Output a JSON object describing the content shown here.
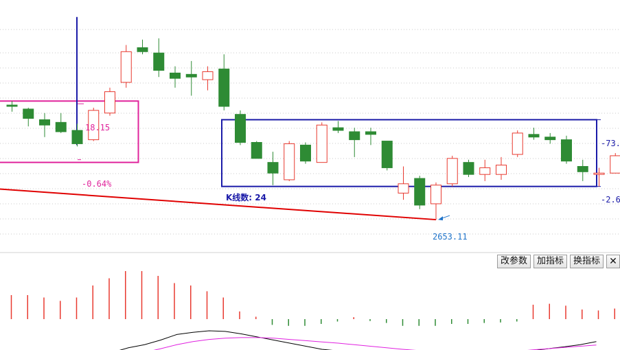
{
  "chart_data": {
    "type": "candlestick",
    "note_units": "price axis values are index points",
    "price_range": [
      2630,
      2810
    ],
    "candles": [
      {
        "open": 2739,
        "high": 2742,
        "low": 2734,
        "close": 2738
      },
      {
        "open": 2736,
        "high": 2737,
        "low": 2723,
        "close": 2729
      },
      {
        "open": 2728,
        "high": 2733,
        "low": 2715,
        "close": 2724
      },
      {
        "open": 2726,
        "high": 2733,
        "low": 2718,
        "close": 2719
      },
      {
        "open": 2720,
        "high": 2725,
        "low": 2708,
        "close": 2710
      },
      {
        "open": 2713,
        "high": 2737,
        "low": 2712,
        "close": 2735
      },
      {
        "open": 2733,
        "high": 2752,
        "low": 2731,
        "close": 2749
      },
      {
        "open": 2756,
        "high": 2784,
        "low": 2752,
        "close": 2779
      },
      {
        "open": 2782,
        "high": 2788,
        "low": 2777,
        "close": 2779
      },
      {
        "open": 2778,
        "high": 2789,
        "low": 2760,
        "close": 2765
      },
      {
        "open": 2763,
        "high": 2768,
        "low": 2752,
        "close": 2759
      },
      {
        "open": 2762,
        "high": 2772,
        "low": 2746,
        "close": 2760
      },
      {
        "open": 2758,
        "high": 2768,
        "low": 2750,
        "close": 2764
      },
      {
        "open": 2766,
        "high": 2777,
        "low": 2735,
        "close": 2738
      },
      {
        "open": 2732,
        "high": 2735,
        "low": 2709,
        "close": 2711
      },
      {
        "open": 2711,
        "high": 2712,
        "low": 2700,
        "close": 2699
      },
      {
        "open": 2696,
        "high": 2704,
        "low": 2679,
        "close": 2688
      },
      {
        "open": 2683,
        "high": 2712,
        "low": 2682,
        "close": 2710
      },
      {
        "open": 2709,
        "high": 2711,
        "low": 2695,
        "close": 2697
      },
      {
        "open": 2696,
        "high": 2726,
        "low": 2696,
        "close": 2724
      },
      {
        "open": 2722,
        "high": 2727,
        "low": 2718,
        "close": 2720
      },
      {
        "open": 2719,
        "high": 2722,
        "low": 2700,
        "close": 2713
      },
      {
        "open": 2719,
        "high": 2722,
        "low": 2709,
        "close": 2717
      },
      {
        "open": 2712,
        "high": 2712,
        "low": 2690,
        "close": 2692
      },
      {
        "open": 2673,
        "high": 2693,
        "low": 2668,
        "close": 2680
      },
      {
        "open": 2684,
        "high": 2686,
        "low": 2661,
        "close": 2664
      },
      {
        "open": 2665,
        "high": 2681,
        "low": 2653.11,
        "close": 2679
      },
      {
        "open": 2680,
        "high": 2701,
        "low": 2678,
        "close": 2699
      },
      {
        "open": 2696,
        "high": 2698,
        "low": 2685,
        "close": 2687
      },
      {
        "open": 2687,
        "high": 2698,
        "low": 2682,
        "close": 2692
      },
      {
        "open": 2687,
        "high": 2700,
        "low": 2683,
        "close": 2694
      },
      {
        "open": 2702,
        "high": 2720,
        "low": 2700,
        "close": 2718
      },
      {
        "open": 2717,
        "high": 2722,
        "low": 2713,
        "close": 2715
      },
      {
        "open": 2715,
        "high": 2718,
        "low": 2710,
        "close": 2713
      },
      {
        "open": 2713,
        "high": 2716,
        "low": 2695,
        "close": 2697
      },
      {
        "open": 2693,
        "high": 2698,
        "low": 2682,
        "close": 2689
      },
      {
        "open": 2687,
        "high": 2692,
        "low": 2678,
        "close": 2688
      },
      {
        "open": 2688,
        "high": 2703,
        "low": 2688,
        "close": 2701
      }
    ],
    "annotations": {
      "left_box_top_label": "18.15",
      "left_box_bottom_label": "-0.64%",
      "low_label": "2653.11",
      "kline_count_label": "K线数: 24",
      "right_box_top_label": "-73.",
      "right_box_bottom_label": "-2.6"
    },
    "macd_hist": [
      0.5,
      0.5,
      0.45,
      0.38,
      0.45,
      0.7,
      0.85,
      1.0,
      1.0,
      0.9,
      0.75,
      0.7,
      0.58,
      0.45,
      0.16,
      0.05,
      -0.12,
      -0.14,
      -0.14,
      -0.1,
      -0.05,
      0.04,
      -0.04,
      -0.08,
      -0.14,
      -0.14,
      -0.14,
      -0.1,
      -0.1,
      -0.08,
      -0.07,
      -0.05,
      0.3,
      0.32,
      0.28,
      0.2,
      0.18,
      0.22
    ],
    "dif_line": [
      -0.45,
      -0.3,
      -0.15,
      -0.05,
      0.1,
      0.28,
      0.35,
      0.4,
      0.38,
      0.3,
      0.2,
      0.1,
      0.0,
      -0.1,
      -0.2,
      -0.25,
      -0.3,
      -0.4,
      -0.5,
      -0.55,
      -0.6,
      -0.55,
      -0.52,
      -0.5,
      -0.48,
      -0.42,
      -0.35,
      -0.25,
      -0.18,
      -0.12,
      -0.05,
      0.05
    ],
    "dea_line": [
      -0.6,
      -0.5,
      -0.4,
      -0.3,
      -0.18,
      -0.05,
      0.05,
      0.12,
      0.16,
      0.18,
      0.18,
      0.16,
      0.12,
      0.08,
      0.04,
      0.0,
      -0.05,
      -0.1,
      -0.15,
      -0.2,
      -0.24,
      -0.28,
      -0.3,
      -0.32,
      -0.32,
      -0.3,
      -0.27,
      -0.22,
      -0.18,
      -0.14,
      -0.1,
      -0.06
    ],
    "colors": {
      "up": "#e8392f",
      "down": "#2e8b34",
      "trend": "#e00000",
      "box_left": "#e0249c",
      "box_right": "#1a1aa8",
      "marker": "#1a1aa8",
      "dif": "#000000",
      "dea": "#e020e0",
      "low_label": "#1f73c9"
    }
  },
  "toolbar": {
    "change_params": "改参数",
    "add_indicator": "加指标",
    "switch_indicator": "换指标",
    "close": "✕"
  }
}
